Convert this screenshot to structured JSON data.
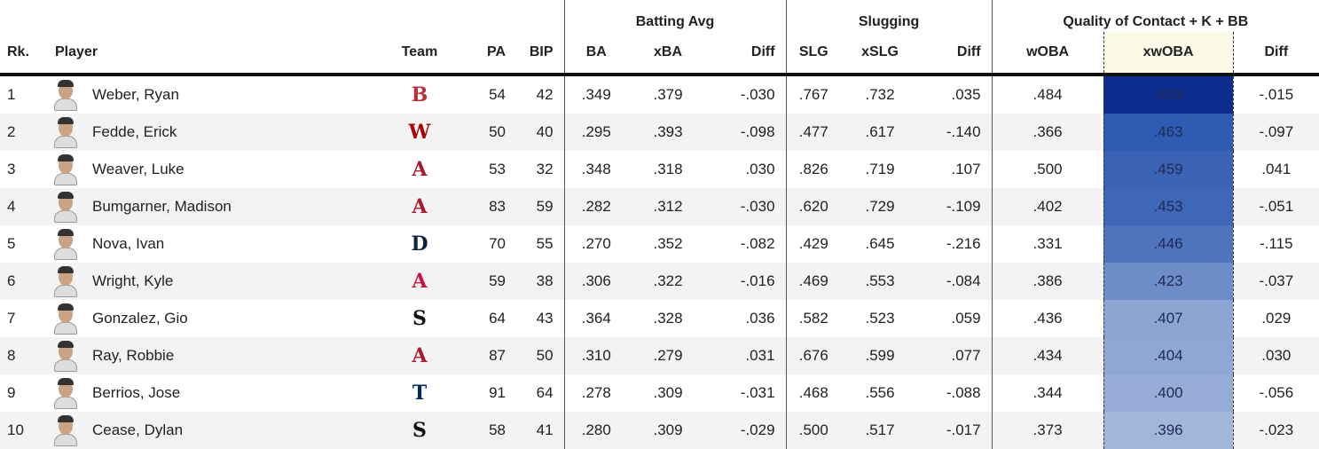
{
  "groups": {
    "batting_avg": "Batting Avg",
    "slugging": "Slugging",
    "quality": "Quality of Contact + K + BB"
  },
  "columns": {
    "rk": "Rk.",
    "player": "Player",
    "team": "Team",
    "pa": "PA",
    "bip": "BIP",
    "ba": "BA",
    "xba": "xBA",
    "diff1": "Diff",
    "slg": "SLG",
    "xslg": "xSLG",
    "diff2": "Diff",
    "woba": "wOBA",
    "xwoba": "xwOBA",
    "diff3": "Diff"
  },
  "colors": {
    "xwoba_scale": [
      "#0d2c8f",
      "#2f5bb2",
      "#3b63b5",
      "#3f67b8",
      "#4f73bd",
      "#6e8cc8",
      "#8da5d3",
      "#90a7d4",
      "#96acd6",
      "#a2b5db"
    ]
  },
  "rows": [
    {
      "rk": "1",
      "player": "Weber, Ryan",
      "team_icon": "red-sox-logo",
      "team_glyph": "B",
      "team_color": "#bd3039",
      "pa": "54",
      "bip": "42",
      "ba": ".349",
      "xba": ".379",
      "diff1": "-.030",
      "slg": ".767",
      "xslg": ".732",
      "diff2": ".035",
      "woba": ".484",
      "xwoba": ".499",
      "diff3": "-.015"
    },
    {
      "rk": "2",
      "player": "Fedde, Erick",
      "team_icon": "nationals-logo",
      "team_glyph": "W",
      "team_color": "#ab0003",
      "pa": "50",
      "bip": "40",
      "ba": ".295",
      "xba": ".393",
      "diff1": "-.098",
      "slg": ".477",
      "xslg": ".617",
      "diff2": "-.140",
      "woba": ".366",
      "xwoba": ".463",
      "diff3": "-.097"
    },
    {
      "rk": "3",
      "player": "Weaver, Luke",
      "team_icon": "diamondbacks-logo",
      "team_glyph": "A",
      "team_color": "#a71930",
      "pa": "53",
      "bip": "32",
      "ba": ".348",
      "xba": ".318",
      "diff1": ".030",
      "slg": ".826",
      "xslg": ".719",
      "diff2": ".107",
      "woba": ".500",
      "xwoba": ".459",
      "diff3": ".041"
    },
    {
      "rk": "4",
      "player": "Bumgarner, Madison",
      "team_icon": "diamondbacks-logo",
      "team_glyph": "A",
      "team_color": "#a71930",
      "pa": "83",
      "bip": "59",
      "ba": ".282",
      "xba": ".312",
      "diff1": "-.030",
      "slg": ".620",
      "xslg": ".729",
      "diff2": "-.109",
      "woba": ".402",
      "xwoba": ".453",
      "diff3": "-.051"
    },
    {
      "rk": "5",
      "player": "Nova, Ivan",
      "team_icon": "tigers-logo",
      "team_glyph": "D",
      "team_color": "#0c2340",
      "pa": "70",
      "bip": "55",
      "ba": ".270",
      "xba": ".352",
      "diff1": "-.082",
      "slg": ".429",
      "xslg": ".645",
      "diff2": "-.216",
      "woba": ".331",
      "xwoba": ".446",
      "diff3": "-.115"
    },
    {
      "rk": "6",
      "player": "Wright, Kyle",
      "team_icon": "braves-logo",
      "team_glyph": "A",
      "team_color": "#ce1141",
      "pa": "59",
      "bip": "38",
      "ba": ".306",
      "xba": ".322",
      "diff1": "-.016",
      "slg": ".469",
      "xslg": ".553",
      "diff2": "-.084",
      "woba": ".386",
      "xwoba": ".423",
      "diff3": "-.037"
    },
    {
      "rk": "7",
      "player": "Gonzalez, Gio",
      "team_icon": "white-sox-logo",
      "team_glyph": "S",
      "team_color": "#111111",
      "pa": "64",
      "bip": "43",
      "ba": ".364",
      "xba": ".328",
      "diff1": ".036",
      "slg": ".582",
      "xslg": ".523",
      "diff2": ".059",
      "woba": ".436",
      "xwoba": ".407",
      "diff3": ".029"
    },
    {
      "rk": "8",
      "player": "Ray, Robbie",
      "team_icon": "diamondbacks-logo",
      "team_glyph": "A",
      "team_color": "#a71930",
      "pa": "87",
      "bip": "50",
      "ba": ".310",
      "xba": ".279",
      "diff1": ".031",
      "slg": ".676",
      "xslg": ".599",
      "diff2": ".077",
      "woba": ".434",
      "xwoba": ".404",
      "diff3": ".030"
    },
    {
      "rk": "9",
      "player": "Berrios, Jose",
      "team_icon": "twins-logo",
      "team_glyph": "T",
      "team_color": "#002b5c",
      "pa": "91",
      "bip": "64",
      "ba": ".278",
      "xba": ".309",
      "diff1": "-.031",
      "slg": ".468",
      "xslg": ".556",
      "diff2": "-.088",
      "woba": ".344",
      "xwoba": ".400",
      "diff3": "-.056"
    },
    {
      "rk": "10",
      "player": "Cease, Dylan",
      "team_icon": "white-sox-logo",
      "team_glyph": "S",
      "team_color": "#111111",
      "pa": "58",
      "bip": "41",
      "ba": ".280",
      "xba": ".309",
      "diff1": "-.029",
      "slg": ".500",
      "xslg": ".517",
      "diff2": "-.017",
      "woba": ".373",
      "xwoba": ".396",
      "diff3": "-.023"
    }
  ]
}
